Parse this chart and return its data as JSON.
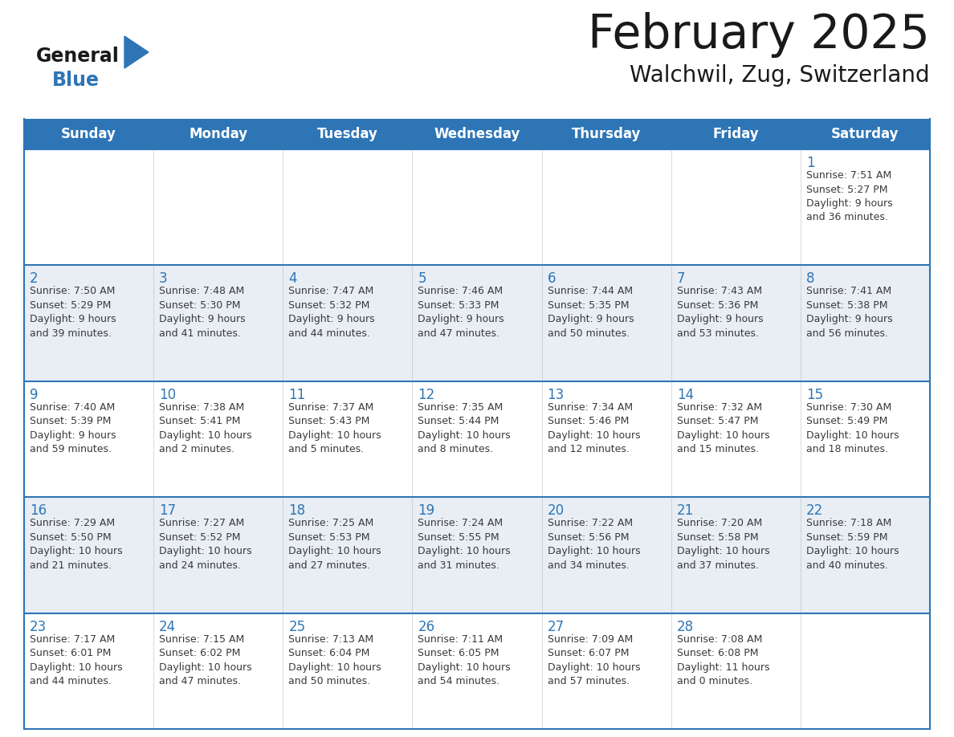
{
  "title": "February 2025",
  "subtitle": "Walchwil, Zug, Switzerland",
  "header_bg_color": "#2e75b6",
  "header_text_color": "#ffffff",
  "cell_border_color": "#2e75b6",
  "thin_border_color": "#aaaaaa",
  "day_headers": [
    "Sunday",
    "Monday",
    "Tuesday",
    "Wednesday",
    "Thursday",
    "Friday",
    "Saturday"
  ],
  "weeks": [
    [
      {
        "day": "",
        "info": ""
      },
      {
        "day": "",
        "info": ""
      },
      {
        "day": "",
        "info": ""
      },
      {
        "day": "",
        "info": ""
      },
      {
        "day": "",
        "info": ""
      },
      {
        "day": "",
        "info": ""
      },
      {
        "day": "1",
        "info": "Sunrise: 7:51 AM\nSunset: 5:27 PM\nDaylight: 9 hours\nand 36 minutes."
      }
    ],
    [
      {
        "day": "2",
        "info": "Sunrise: 7:50 AM\nSunset: 5:29 PM\nDaylight: 9 hours\nand 39 minutes."
      },
      {
        "day": "3",
        "info": "Sunrise: 7:48 AM\nSunset: 5:30 PM\nDaylight: 9 hours\nand 41 minutes."
      },
      {
        "day": "4",
        "info": "Sunrise: 7:47 AM\nSunset: 5:32 PM\nDaylight: 9 hours\nand 44 minutes."
      },
      {
        "day": "5",
        "info": "Sunrise: 7:46 AM\nSunset: 5:33 PM\nDaylight: 9 hours\nand 47 minutes."
      },
      {
        "day": "6",
        "info": "Sunrise: 7:44 AM\nSunset: 5:35 PM\nDaylight: 9 hours\nand 50 minutes."
      },
      {
        "day": "7",
        "info": "Sunrise: 7:43 AM\nSunset: 5:36 PM\nDaylight: 9 hours\nand 53 minutes."
      },
      {
        "day": "8",
        "info": "Sunrise: 7:41 AM\nSunset: 5:38 PM\nDaylight: 9 hours\nand 56 minutes."
      }
    ],
    [
      {
        "day": "9",
        "info": "Sunrise: 7:40 AM\nSunset: 5:39 PM\nDaylight: 9 hours\nand 59 minutes."
      },
      {
        "day": "10",
        "info": "Sunrise: 7:38 AM\nSunset: 5:41 PM\nDaylight: 10 hours\nand 2 minutes."
      },
      {
        "day": "11",
        "info": "Sunrise: 7:37 AM\nSunset: 5:43 PM\nDaylight: 10 hours\nand 5 minutes."
      },
      {
        "day": "12",
        "info": "Sunrise: 7:35 AM\nSunset: 5:44 PM\nDaylight: 10 hours\nand 8 minutes."
      },
      {
        "day": "13",
        "info": "Sunrise: 7:34 AM\nSunset: 5:46 PM\nDaylight: 10 hours\nand 12 minutes."
      },
      {
        "day": "14",
        "info": "Sunrise: 7:32 AM\nSunset: 5:47 PM\nDaylight: 10 hours\nand 15 minutes."
      },
      {
        "day": "15",
        "info": "Sunrise: 7:30 AM\nSunset: 5:49 PM\nDaylight: 10 hours\nand 18 minutes."
      }
    ],
    [
      {
        "day": "16",
        "info": "Sunrise: 7:29 AM\nSunset: 5:50 PM\nDaylight: 10 hours\nand 21 minutes."
      },
      {
        "day": "17",
        "info": "Sunrise: 7:27 AM\nSunset: 5:52 PM\nDaylight: 10 hours\nand 24 minutes."
      },
      {
        "day": "18",
        "info": "Sunrise: 7:25 AM\nSunset: 5:53 PM\nDaylight: 10 hours\nand 27 minutes."
      },
      {
        "day": "19",
        "info": "Sunrise: 7:24 AM\nSunset: 5:55 PM\nDaylight: 10 hours\nand 31 minutes."
      },
      {
        "day": "20",
        "info": "Sunrise: 7:22 AM\nSunset: 5:56 PM\nDaylight: 10 hours\nand 34 minutes."
      },
      {
        "day": "21",
        "info": "Sunrise: 7:20 AM\nSunset: 5:58 PM\nDaylight: 10 hours\nand 37 minutes."
      },
      {
        "day": "22",
        "info": "Sunrise: 7:18 AM\nSunset: 5:59 PM\nDaylight: 10 hours\nand 40 minutes."
      }
    ],
    [
      {
        "day": "23",
        "info": "Sunrise: 7:17 AM\nSunset: 6:01 PM\nDaylight: 10 hours\nand 44 minutes."
      },
      {
        "day": "24",
        "info": "Sunrise: 7:15 AM\nSunset: 6:02 PM\nDaylight: 10 hours\nand 47 minutes."
      },
      {
        "day": "25",
        "info": "Sunrise: 7:13 AM\nSunset: 6:04 PM\nDaylight: 10 hours\nand 50 minutes."
      },
      {
        "day": "26",
        "info": "Sunrise: 7:11 AM\nSunset: 6:05 PM\nDaylight: 10 hours\nand 54 minutes."
      },
      {
        "day": "27",
        "info": "Sunrise: 7:09 AM\nSunset: 6:07 PM\nDaylight: 10 hours\nand 57 minutes."
      },
      {
        "day": "28",
        "info": "Sunrise: 7:08 AM\nSunset: 6:08 PM\nDaylight: 11 hours\nand 0 minutes."
      },
      {
        "day": "",
        "info": ""
      }
    ]
  ],
  "logo_text_general": "General",
  "logo_text_blue": "Blue",
  "logo_color_general": "#1a1a1a",
  "logo_color_blue": "#2e75b6",
  "logo_triangle_color": "#2e75b6",
  "background_color": "#ffffff",
  "cell_bg_even": "#ffffff",
  "cell_bg_odd": "#e8eef4",
  "day_number_color": "#2e75b6",
  "info_text_color": "#3a3a3a",
  "title_color": "#1a1a1a",
  "subtitle_color": "#1a1a1a"
}
